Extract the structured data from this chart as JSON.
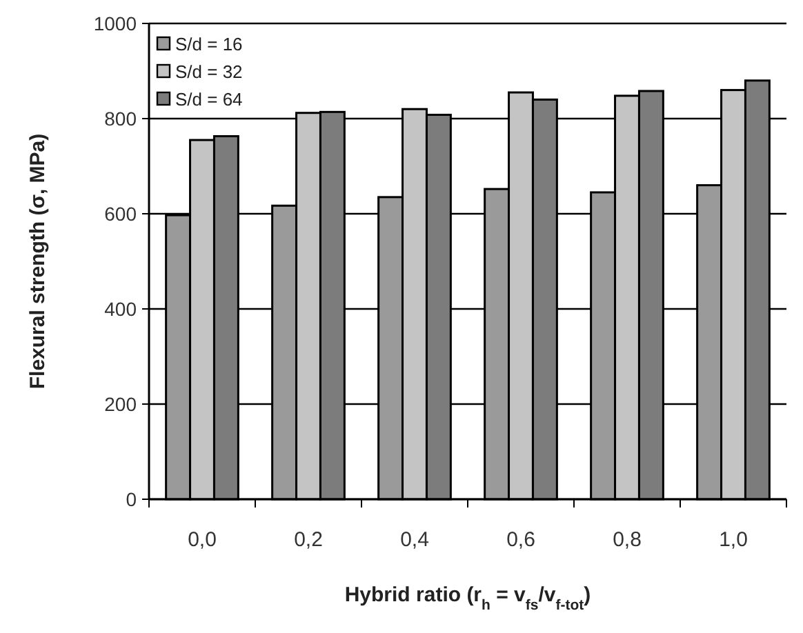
{
  "chart_data": {
    "type": "bar",
    "xlabel": "Hybrid ratio (r$_{h}$ = v$_{fs}$/v$_{f-tot}$)",
    "ylabel": "Flexural strength (σ, MPa)",
    "categories": [
      "0,0",
      "0,2",
      "0,4",
      "0,6",
      "0,8",
      "1,0"
    ],
    "series": [
      {
        "name": "S/d = 16",
        "color": "#9a9a9a",
        "values": [
          597,
          617,
          635,
          652,
          645,
          660
        ]
      },
      {
        "name": "S/d = 32",
        "color": "#c4c4c4",
        "values": [
          755,
          812,
          820,
          855,
          848,
          860
        ]
      },
      {
        "name": "S/d = 64",
        "color": "#7c7c7c",
        "values": [
          763,
          814,
          808,
          840,
          858,
          880
        ]
      }
    ],
    "ylim": [
      0,
      1000
    ],
    "yticks": [
      0,
      200,
      400,
      600,
      800,
      1000
    ],
    "grid": "y",
    "legend": "top left"
  }
}
